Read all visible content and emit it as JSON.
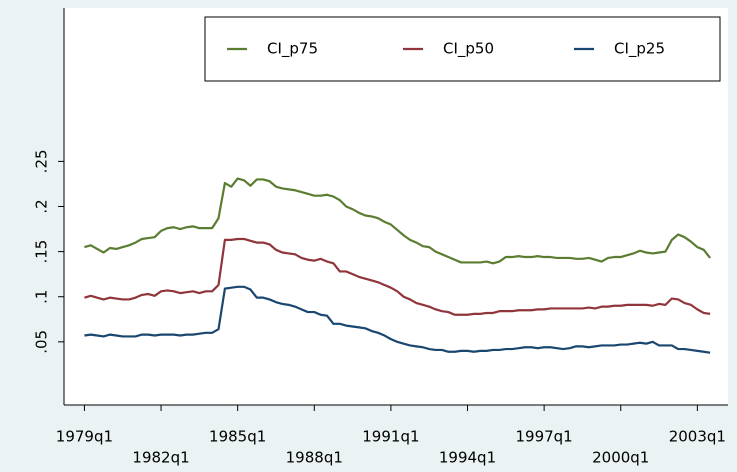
{
  "chart_data": {
    "type": "line",
    "x": [
      1979,
      1979.25,
      1979.5,
      1979.75,
      1980,
      1980.25,
      1980.5,
      1980.75,
      1981,
      1981.25,
      1981.5,
      1981.75,
      1982,
      1982.25,
      1982.5,
      1982.75,
      1983,
      1983.25,
      1983.5,
      1983.75,
      1984,
      1984.25,
      1984.5,
      1984.75,
      1985,
      1985.25,
      1985.5,
      1985.75,
      1986,
      1986.25,
      1986.5,
      1986.75,
      1987,
      1987.25,
      1987.5,
      1987.75,
      1988,
      1988.25,
      1988.5,
      1988.75,
      1989,
      1989.25,
      1989.5,
      1989.75,
      1990,
      1990.25,
      1990.5,
      1990.75,
      1991,
      1991.25,
      1991.5,
      1991.75,
      1992,
      1992.25,
      1992.5,
      1992.75,
      1993,
      1993.25,
      1993.5,
      1993.75,
      1994,
      1994.25,
      1994.5,
      1994.75,
      1995,
      1995.25,
      1995.5,
      1995.75,
      1996,
      1996.25,
      1996.5,
      1996.75,
      1997,
      1997.25,
      1997.5,
      1997.75,
      1998,
      1998.25,
      1998.5,
      1998.75,
      1999,
      1999.25,
      1999.5,
      1999.75,
      2000,
      2000.25,
      2000.5,
      2000.75,
      2001,
      2001.25,
      2001.5,
      2001.75,
      2002,
      2002.25,
      2002.5,
      2002.75,
      2003,
      2003.25,
      2003.5
    ],
    "series": [
      {
        "name": "CI_p75",
        "color": "#5b7d32",
        "values": [
          0.155,
          0.157,
          0.153,
          0.149,
          0.154,
          0.153,
          0.155,
          0.157,
          0.16,
          0.164,
          0.165,
          0.166,
          0.173,
          0.176,
          0.177,
          0.175,
          0.177,
          0.178,
          0.176,
          0.176,
          0.176,
          0.187,
          0.226,
          0.222,
          0.231,
          0.229,
          0.223,
          0.23,
          0.23,
          0.228,
          0.222,
          0.22,
          0.219,
          0.218,
          0.216,
          0.214,
          0.212,
          0.212,
          0.213,
          0.211,
          0.207,
          0.2,
          0.197,
          0.193,
          0.19,
          0.189,
          0.187,
          0.183,
          0.18,
          0.174,
          0.168,
          0.163,
          0.16,
          0.156,
          0.155,
          0.15,
          0.147,
          0.144,
          0.141,
          0.138,
          0.138,
          0.138,
          0.138,
          0.139,
          0.137,
          0.139,
          0.144,
          0.144,
          0.145,
          0.144,
          0.144,
          0.145,
          0.144,
          0.144,
          0.143,
          0.143,
          0.143,
          0.142,
          0.142,
          0.143,
          0.141,
          0.139,
          0.143,
          0.144,
          0.144,
          0.146,
          0.148,
          0.151,
          0.149,
          0.148,
          0.149,
          0.15,
          0.163,
          0.169,
          0.166,
          0.161,
          0.155,
          0.152,
          0.143
        ]
      },
      {
        "name": "CI_p50",
        "color": "#90353b",
        "values": [
          0.099,
          0.101,
          0.099,
          0.097,
          0.099,
          0.098,
          0.097,
          0.097,
          0.099,
          0.102,
          0.103,
          0.101,
          0.106,
          0.107,
          0.106,
          0.104,
          0.105,
          0.106,
          0.104,
          0.106,
          0.106,
          0.113,
          0.163,
          0.163,
          0.164,
          0.164,
          0.162,
          0.16,
          0.16,
          0.158,
          0.152,
          0.149,
          0.148,
          0.147,
          0.143,
          0.141,
          0.14,
          0.142,
          0.139,
          0.137,
          0.128,
          0.128,
          0.125,
          0.122,
          0.12,
          0.118,
          0.116,
          0.113,
          0.11,
          0.106,
          0.1,
          0.097,
          0.093,
          0.091,
          0.089,
          0.086,
          0.084,
          0.083,
          0.08,
          0.08,
          0.08,
          0.081,
          0.081,
          0.082,
          0.082,
          0.084,
          0.084,
          0.084,
          0.085,
          0.085,
          0.085,
          0.086,
          0.086,
          0.087,
          0.087,
          0.087,
          0.087,
          0.087,
          0.087,
          0.088,
          0.087,
          0.089,
          0.089,
          0.09,
          0.09,
          0.091,
          0.091,
          0.091,
          0.091,
          0.09,
          0.092,
          0.091,
          0.098,
          0.097,
          0.093,
          0.091,
          0.086,
          0.082,
          0.081
        ]
      },
      {
        "name": "CI_p25",
        "color": "#1a476f",
        "values": [
          0.057,
          0.058,
          0.057,
          0.056,
          0.058,
          0.057,
          0.056,
          0.056,
          0.056,
          0.058,
          0.058,
          0.057,
          0.058,
          0.058,
          0.058,
          0.057,
          0.058,
          0.058,
          0.059,
          0.06,
          0.06,
          0.064,
          0.109,
          0.11,
          0.111,
          0.111,
          0.108,
          0.099,
          0.099,
          0.097,
          0.094,
          0.092,
          0.091,
          0.089,
          0.086,
          0.083,
          0.083,
          0.08,
          0.079,
          0.07,
          0.07,
          0.068,
          0.067,
          0.066,
          0.065,
          0.062,
          0.06,
          0.057,
          0.053,
          0.05,
          0.048,
          0.046,
          0.045,
          0.044,
          0.042,
          0.041,
          0.041,
          0.039,
          0.039,
          0.04,
          0.04,
          0.039,
          0.04,
          0.04,
          0.041,
          0.041,
          0.042,
          0.042,
          0.043,
          0.044,
          0.044,
          0.043,
          0.044,
          0.044,
          0.043,
          0.042,
          0.043,
          0.045,
          0.045,
          0.044,
          0.045,
          0.046,
          0.046,
          0.046,
          0.047,
          0.047,
          0.048,
          0.049,
          0.048,
          0.05,
          0.046,
          0.046,
          0.046,
          0.042,
          0.042,
          0.041,
          0.04,
          0.039,
          0.038
        ]
      }
    ],
    "xlim": [
      1978.2,
      2004.2
    ],
    "xticks": [
      {
        "value": 1979,
        "label": "1979q1"
      },
      {
        "value": 1982,
        "label": "1982q1"
      },
      {
        "value": 1985,
        "label": "1985q1"
      },
      {
        "value": 1988,
        "label": "1988q1"
      },
      {
        "value": 1991,
        "label": "1991q1"
      },
      {
        "value": 1994,
        "label": "1994q1"
      },
      {
        "value": 1997,
        "label": "1997q1"
      },
      {
        "value": 2000,
        "label": "2000q1"
      },
      {
        "value": 2003,
        "label": "2003q1"
      }
    ],
    "ylim": [
      -0.02,
      0.42
    ],
    "yticks": [
      {
        "value": 0.05,
        "label": ".05"
      },
      {
        "value": 0.1,
        "label": ".1"
      },
      {
        "value": 0.15,
        "label": ".15"
      },
      {
        "value": 0.2,
        "label": ".2"
      },
      {
        "value": 0.25,
        "label": ".25"
      }
    ],
    "grid": false,
    "legend": "top-right"
  }
}
